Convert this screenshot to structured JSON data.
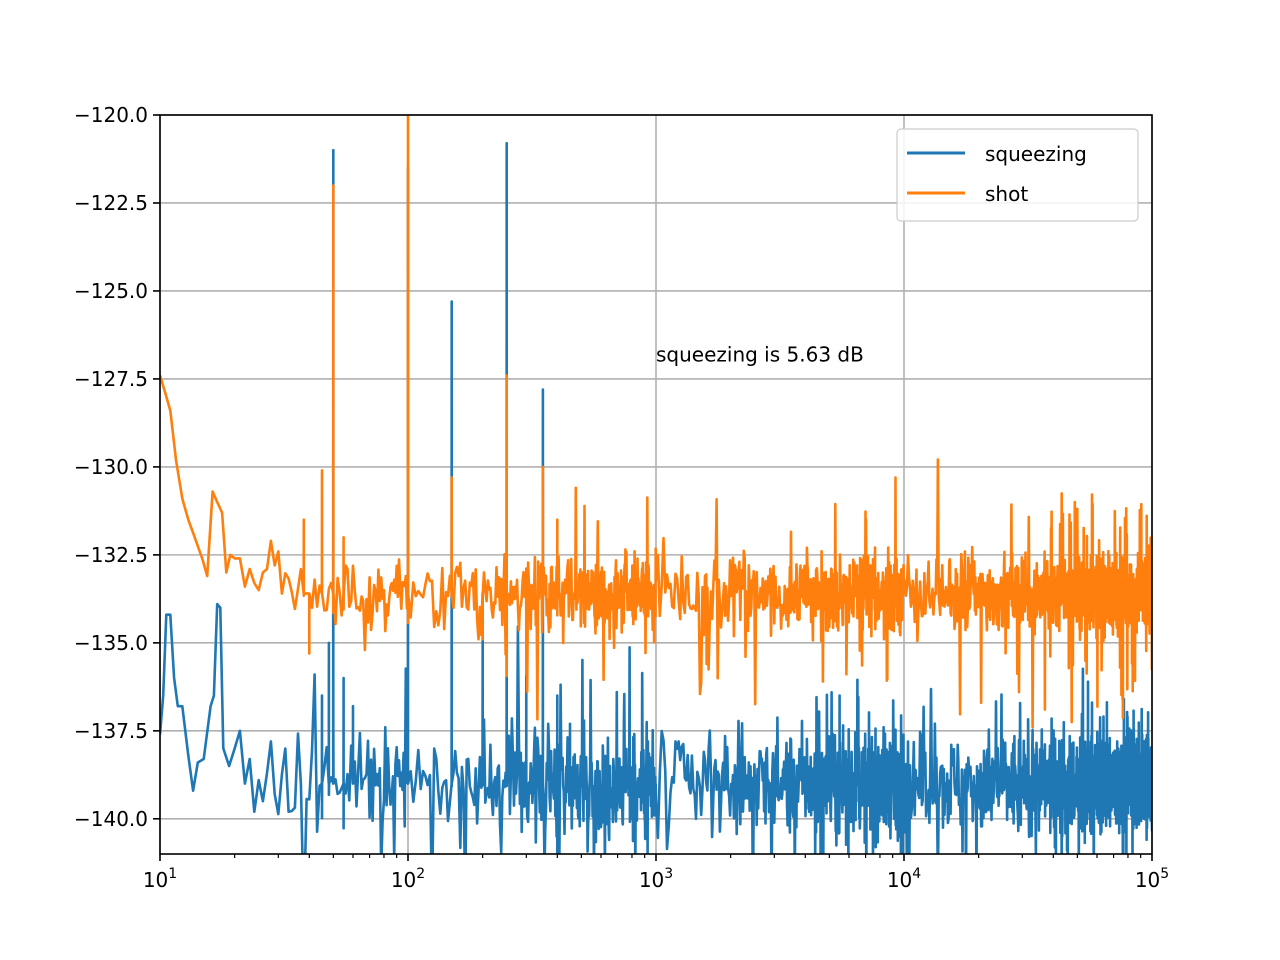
{
  "chart_data": {
    "type": "line",
    "title": "",
    "xlabel": "",
    "ylabel": "",
    "x_scale": "log",
    "xlim": [
      10,
      100000
    ],
    "ylim": [
      -141,
      -120
    ],
    "grid": true,
    "legend_position": "upper right",
    "x_ticks": [
      {
        "value": 10,
        "base": "10",
        "exp": "1"
      },
      {
        "value": 100,
        "base": "10",
        "exp": "2"
      },
      {
        "value": 1000,
        "base": "10",
        "exp": "3"
      },
      {
        "value": 10000,
        "base": "10",
        "exp": "4"
      },
      {
        "value": 100000,
        "base": "10",
        "exp": "5"
      }
    ],
    "y_ticks": [
      {
        "value": -120,
        "label": "−120.0"
      },
      {
        "value": -122.5,
        "label": "−122.5"
      },
      {
        "value": -125,
        "label": "−125.0"
      },
      {
        "value": -127.5,
        "label": "−127.5"
      },
      {
        "value": -130,
        "label": "−130.0"
      },
      {
        "value": -132.5,
        "label": "−132.5"
      },
      {
        "value": -135,
        "label": "−135.0"
      },
      {
        "value": -137.5,
        "label": "−137.5"
      },
      {
        "value": -140,
        "label": "−140.0"
      }
    ],
    "annotation": {
      "text": "squeezing is 5.63 dB",
      "x": 1000,
      "y": -127.0
    },
    "series": [
      {
        "name": "squeezing",
        "color": "#1f77b4",
        "baseline": -139.0,
        "noise": 1.0,
        "low_freq": [
          [
            10,
            -137.6
          ],
          [
            10.3,
            -136.5
          ],
          [
            10.6,
            -134.2
          ],
          [
            11.0,
            -134.2
          ],
          [
            11.4,
            -136.0
          ],
          [
            11.8,
            -136.8
          ],
          [
            12.3,
            -136.8
          ],
          [
            13.0,
            -138.2
          ],
          [
            13.6,
            -139.2
          ],
          [
            14.2,
            -138.4
          ],
          [
            15.0,
            -138.3
          ],
          [
            16.0,
            -136.8
          ],
          [
            16.5,
            -136.5
          ],
          [
            17.0,
            -133.9
          ],
          [
            17.5,
            -134.0
          ],
          [
            18.0,
            -138.0
          ],
          [
            19.0,
            -138.5
          ],
          [
            20.0,
            -138.0
          ],
          [
            21.0,
            -137.5
          ],
          [
            22.0,
            -139.0
          ],
          [
            23.0,
            -138.3
          ],
          [
            24.0,
            -139.8
          ],
          [
            25.0,
            -138.9
          ],
          [
            26.0,
            -139.5
          ],
          [
            27.0,
            -138.7
          ],
          [
            28.0,
            -137.8
          ],
          [
            29.0,
            -139.3
          ]
        ],
        "peaks": [
          [
            45.0,
            -136.5
          ],
          [
            48.0,
            -135.0
          ],
          [
            50.0,
            -121.0
          ],
          [
            55.0,
            -136.0
          ],
          [
            60.0,
            -136.8
          ],
          [
            100.0,
            -121.5
          ],
          [
            150.0,
            -125.3
          ],
          [
            200.0,
            -134.6
          ],
          [
            250.0,
            -120.8
          ],
          [
            300.0,
            -135.0
          ],
          [
            350.0,
            -127.8
          ],
          [
            400.0,
            -136.5
          ],
          [
            450.0,
            -137.3
          ],
          [
            5500.0,
            -136.5
          ]
        ]
      },
      {
        "name": "shot",
        "color": "#ff7f0e",
        "baseline": -133.6,
        "noise": 0.75,
        "low_freq": [
          [
            10,
            -127.4
          ],
          [
            10.5,
            -127.9
          ],
          [
            11.0,
            -128.4
          ],
          [
            11.6,
            -129.8
          ],
          [
            12.3,
            -130.9
          ],
          [
            13.0,
            -131.5
          ],
          [
            13.8,
            -132.0
          ],
          [
            14.8,
            -132.6
          ],
          [
            15.5,
            -133.1
          ],
          [
            16.3,
            -130.7
          ],
          [
            17.0,
            -131.0
          ],
          [
            17.8,
            -131.3
          ],
          [
            18.5,
            -133.0
          ],
          [
            19.2,
            -132.5
          ],
          [
            20.0,
            -132.6
          ],
          [
            21.0,
            -132.6
          ],
          [
            22.0,
            -133.4
          ],
          [
            23.0,
            -132.9
          ],
          [
            24.0,
            -133.3
          ],
          [
            25.0,
            -133.5
          ],
          [
            26.0,
            -133.0
          ],
          [
            27.0,
            -132.9
          ],
          [
            28.0,
            -132.1
          ],
          [
            29.0,
            -132.8
          ],
          [
            30.0,
            -132.4
          ],
          [
            31.0,
            -133.6
          ]
        ],
        "peaks": [
          [
            38.0,
            -131.5
          ],
          [
            40.0,
            -135.3
          ],
          [
            45.0,
            -130.1
          ],
          [
            50.0,
            -122.0
          ],
          [
            55.0,
            -132.0
          ],
          [
            100.0,
            -120.0
          ],
          [
            150.0,
            -130.3
          ],
          [
            200.0,
            -134.9
          ],
          [
            250.0,
            -127.4
          ],
          [
            300.0,
            -135.9
          ],
          [
            350.0,
            -130.0
          ],
          [
            400.0,
            -131.5
          ],
          [
            1600.0,
            -135.6
          ]
        ]
      }
    ]
  }
}
